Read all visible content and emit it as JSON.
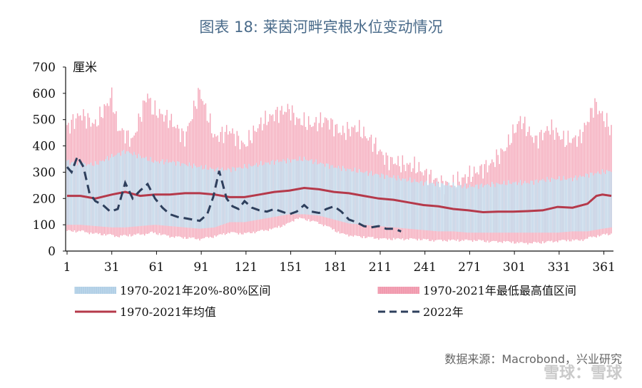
{
  "title": "图表 18:   莱茵河畔宾根水位变动情况",
  "source": "数据来源：Macrobond，兴业研究",
  "watermark": "雪球：雪球",
  "chart_data": {
    "type": "area",
    "unit_label": "厘米",
    "xlim": [
      1,
      366
    ],
    "ylim": [
      0,
      700
    ],
    "x_ticks": [
      1,
      31,
      61,
      91,
      121,
      151,
      181,
      211,
      241,
      271,
      301,
      331,
      361
    ],
    "y_ticks": [
      0,
      100,
      200,
      300,
      400,
      500,
      600,
      700
    ],
    "colors": {
      "range_minmax": "#f4a6b8",
      "range_2080": "#bdd7ea",
      "mean": "#b5394a",
      "y2022": "#2e3f5c"
    },
    "legend": [
      {
        "label": "1970-2021年20%-80%区间",
        "style": "band-blue"
      },
      {
        "label": "1970-2021年最低最高值区间",
        "style": "band-pink"
      },
      {
        "label": "1970-2021年均值",
        "style": "line-red"
      },
      {
        "label": "2022年",
        "style": "dash-navy"
      }
    ],
    "series": [
      {
        "name": "1970-2021年最低最高值区间",
        "x": [
          1,
          10,
          20,
          31,
          35,
          45,
          55,
          58,
          70,
          80,
          90,
          100,
          110,
          120,
          130,
          140,
          150,
          155,
          165,
          175,
          185,
          195,
          205,
          215,
          225,
          235,
          245,
          255,
          265,
          275,
          285,
          295,
          305,
          315,
          325,
          335,
          345,
          355,
          366
        ],
        "low": [
          80,
          80,
          70,
          65,
          60,
          65,
          70,
          75,
          60,
          55,
          50,
          60,
          75,
          70,
          80,
          90,
          110,
          130,
          120,
          100,
          70,
          60,
          55,
          50,
          50,
          50,
          45,
          45,
          45,
          45,
          40,
          40,
          35,
          35,
          40,
          45,
          45,
          60,
          70
        ],
        "high": [
          470,
          520,
          480,
          590,
          470,
          420,
          600,
          540,
          500,
          430,
          610,
          430,
          460,
          400,
          480,
          520,
          540,
          500,
          480,
          500,
          450,
          470,
          420,
          350,
          330,
          320,
          280,
          250,
          270,
          300,
          330,
          390,
          500,
          420,
          470,
          420,
          430,
          560,
          460
        ]
      },
      {
        "name": "1970-2021年20%-80%区间",
        "x": [
          1,
          10,
          20,
          31,
          40,
          50,
          60,
          70,
          80,
          90,
          100,
          110,
          120,
          130,
          140,
          150,
          160,
          170,
          180,
          190,
          200,
          210,
          220,
          230,
          240,
          250,
          260,
          270,
          280,
          290,
          300,
          310,
          320,
          330,
          340,
          350,
          360,
          366
        ],
        "low": [
          100,
          100,
          95,
          90,
          90,
          95,
          100,
          95,
          90,
          85,
          90,
          110,
          110,
          120,
          130,
          140,
          140,
          135,
          120,
          105,
          100,
          95,
          90,
          85,
          80,
          75,
          75,
          70,
          70,
          70,
          70,
          70,
          70,
          70,
          75,
          75,
          85,
          90
        ],
        "high": [
          340,
          330,
          330,
          360,
          380,
          360,
          340,
          340,
          330,
          320,
          310,
          310,
          320,
          330,
          340,
          345,
          350,
          335,
          320,
          310,
          300,
          290,
          280,
          270,
          260,
          255,
          250,
          245,
          250,
          255,
          260,
          260,
          270,
          275,
          275,
          290,
          300,
          305
        ]
      },
      {
        "name": "1970-2021年均值",
        "x": [
          1,
          10,
          20,
          31,
          40,
          50,
          60,
          70,
          80,
          90,
          100,
          110,
          120,
          130,
          140,
          150,
          160,
          170,
          180,
          190,
          200,
          210,
          220,
          230,
          240,
          250,
          260,
          270,
          280,
          290,
          300,
          310,
          320,
          330,
          340,
          350,
          356,
          360,
          366
        ],
        "values": [
          210,
          210,
          200,
          215,
          225,
          210,
          215,
          215,
          220,
          220,
          215,
          205,
          205,
          215,
          225,
          230,
          240,
          235,
          225,
          220,
          210,
          200,
          195,
          185,
          175,
          170,
          160,
          155,
          148,
          150,
          150,
          152,
          155,
          168,
          165,
          180,
          210,
          215,
          210
        ]
      },
      {
        "name": "2022年",
        "x": [
          1,
          4,
          8,
          12,
          16,
          20,
          25,
          30,
          35,
          40,
          45,
          50,
          55,
          60,
          65,
          70,
          75,
          80,
          85,
          90,
          95,
          99,
          103,
          108,
          112,
          116,
          120,
          125,
          130,
          135,
          140,
          145,
          150,
          155,
          160,
          165,
          170,
          175,
          180,
          185,
          190,
          195,
          200,
          205,
          210,
          215,
          220,
          225
        ],
        "values": [
          320,
          300,
          360,
          320,
          220,
          190,
          175,
          150,
          160,
          260,
          200,
          230,
          255,
          200,
          165,
          140,
          130,
          125,
          120,
          115,
          140,
          205,
          305,
          200,
          170,
          160,
          190,
          165,
          155,
          150,
          160,
          150,
          140,
          150,
          175,
          150,
          145,
          160,
          170,
          150,
          120,
          110,
          95,
          90,
          95,
          85,
          85,
          75
        ]
      }
    ]
  }
}
